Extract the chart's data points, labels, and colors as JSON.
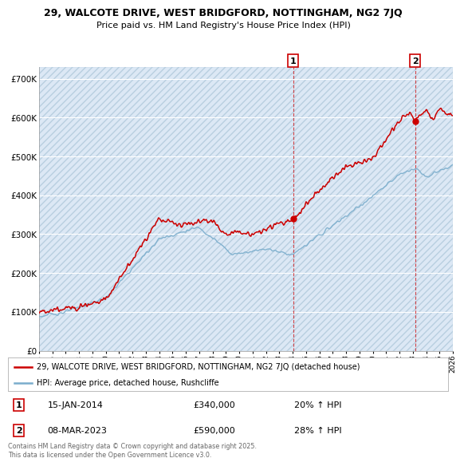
{
  "title": "29, WALCOTE DRIVE, WEST BRIDGFORD, NOTTINGHAM, NG2 7JQ",
  "subtitle": "Price paid vs. HM Land Registry's House Price Index (HPI)",
  "legend_label_red": "29, WALCOTE DRIVE, WEST BRIDGFORD, NOTTINGHAM, NG2 7JQ (detached house)",
  "legend_label_blue": "HPI: Average price, detached house, Rushcliffe",
  "annotation1_label": "1",
  "annotation1_date": "15-JAN-2014",
  "annotation1_price": "£340,000",
  "annotation1_hpi": "20% ↑ HPI",
  "annotation1_year": 2014.04,
  "annotation1_value": 340000,
  "annotation2_label": "2",
  "annotation2_date": "08-MAR-2023",
  "annotation2_price": "£590,000",
  "annotation2_hpi": "28% ↑ HPI",
  "annotation2_year": 2023.18,
  "annotation2_value": 590000,
  "ylim": [
    0,
    730000
  ],
  "yticks": [
    0,
    100000,
    200000,
    300000,
    400000,
    500000,
    600000,
    700000
  ],
  "ytick_labels": [
    "£0",
    "£100K",
    "£200K",
    "£300K",
    "£400K",
    "£500K",
    "£600K",
    "£700K"
  ],
  "xlim_start": 1995,
  "xlim_end": 2026,
  "background_color": "#ffffff",
  "plot_bg_color": "#dce8f5",
  "grid_color": "#ffffff",
  "hatch_color": "#c8d8eb",
  "red_color": "#cc0000",
  "blue_color": "#7aadcc",
  "footer": "Contains HM Land Registry data © Crown copyright and database right 2025.\nThis data is licensed under the Open Government Licence v3.0."
}
